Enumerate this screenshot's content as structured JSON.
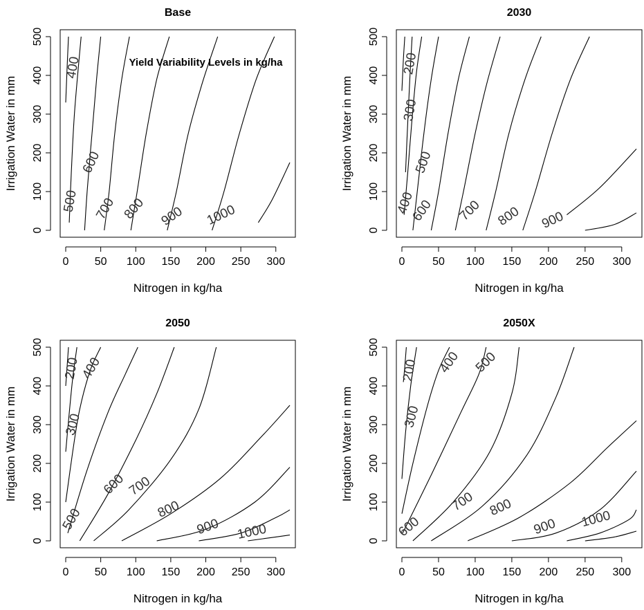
{
  "chart_data": [
    {
      "type": "contour",
      "title": "Base",
      "xlabel": "Nitrogen in kg/ha",
      "ylabel": "Irrigation Water in mm",
      "xlim": [
        0,
        320
      ],
      "ylim": [
        0,
        500
      ],
      "xticks": [
        "0",
        "50",
        "100",
        "150",
        "200",
        "250",
        "300"
      ],
      "yticks": [
        "0",
        "100",
        "200",
        "300",
        "400",
        "500"
      ],
      "annotation": "Yield Variability Levels in kg/ha",
      "contours": [
        {
          "level": "400",
          "points": [
            [
              0,
              330
            ],
            [
              2,
              420
            ],
            [
              4,
              500
            ]
          ]
        },
        {
          "level": "500",
          "points": [
            [
              5,
              20
            ],
            [
              8,
              150
            ],
            [
              12,
              290
            ],
            [
              18,
              420
            ],
            [
              22,
              500
            ]
          ]
        },
        {
          "level": "600",
          "points": [
            [
              27,
              0
            ],
            [
              31,
              110
            ],
            [
              38,
              260
            ],
            [
              44,
              390
            ],
            [
              50,
              500
            ]
          ]
        },
        {
          "level": "700",
          "points": [
            [
              55,
              0
            ],
            [
              62,
              100
            ],
            [
              70,
              250
            ],
            [
              80,
              390
            ],
            [
              91,
              500
            ]
          ]
        },
        {
          "level": "800",
          "points": [
            [
              93,
              0
            ],
            [
              102,
              100
            ],
            [
              115,
              250
            ],
            [
              130,
              390
            ],
            [
              148,
              500
            ]
          ]
        },
        {
          "level": "900",
          "points": [
            [
              145,
              0
            ],
            [
              158,
              100
            ],
            [
              175,
              250
            ],
            [
              195,
              380
            ],
            [
              217,
              500
            ]
          ]
        },
        {
          "level": "1000",
          "points": [
            [
              209,
              0
            ],
            [
              226,
              100
            ],
            [
              248,
              250
            ],
            [
              272,
              390
            ],
            [
              298,
              500
            ]
          ]
        },
        {
          "level": "",
          "points": [
            [
              275,
              20
            ],
            [
              295,
              80
            ],
            [
              320,
              175
            ]
          ]
        }
      ],
      "contour_labels": [
        {
          "text": "400",
          "x": 11,
          "y": 420,
          "angle": -80
        },
        {
          "text": "500",
          "x": 7,
          "y": 75,
          "angle": -80
        },
        {
          "text": "600",
          "x": 37,
          "y": 175,
          "angle": -65
        },
        {
          "text": "700",
          "x": 57,
          "y": 55,
          "angle": -60
        },
        {
          "text": "800",
          "x": 98,
          "y": 55,
          "angle": -50
        },
        {
          "text": "900",
          "x": 152,
          "y": 35,
          "angle": -35
        },
        {
          "text": "1000",
          "x": 222,
          "y": 38,
          "angle": -25
        }
      ]
    },
    {
      "type": "contour",
      "title": "2030",
      "xlabel": "Nitrogen in kg/ha",
      "ylabel": "Irrigation Water in mm",
      "xlim": [
        0,
        320
      ],
      "ylim": [
        0,
        500
      ],
      "xticks": [
        "0",
        "50",
        "100",
        "150",
        "200",
        "250",
        "300"
      ],
      "yticks": [
        "0",
        "100",
        "200",
        "300",
        "400",
        "500"
      ],
      "contours": [
        {
          "level": "200",
          "points": [
            [
              0,
              360
            ],
            [
              2,
              440
            ],
            [
              4,
              500
            ]
          ]
        },
        {
          "level": "300",
          "points": [
            [
              5,
              150
            ],
            [
              8,
              280
            ],
            [
              11,
              400
            ],
            [
              14,
              500
            ]
          ]
        },
        {
          "level": "400",
          "points": [
            [
              3,
              40
            ],
            [
              8,
              150
            ],
            [
              14,
              290
            ],
            [
              20,
              410
            ],
            [
              27,
              500
            ]
          ]
        },
        {
          "level": "500",
          "points": [
            [
              15,
              0
            ],
            [
              21,
              100
            ],
            [
              30,
              250
            ],
            [
              40,
              390
            ],
            [
              50,
              500
            ]
          ]
        },
        {
          "level": "600",
          "points": [
            [
              40,
              0
            ],
            [
              50,
              100
            ],
            [
              63,
              250
            ],
            [
              77,
              390
            ],
            [
              92,
              500
            ]
          ]
        },
        {
          "level": "700",
          "points": [
            [
              73,
              0
            ],
            [
              84,
              100
            ],
            [
              100,
              250
            ],
            [
              116,
              380
            ],
            [
              134,
              500
            ]
          ]
        },
        {
          "level": "800",
          "points": [
            [
              115,
              0
            ],
            [
              128,
              100
            ],
            [
              146,
              250
            ],
            [
              168,
              390
            ],
            [
              190,
              500
            ]
          ]
        },
        {
          "level": "900",
          "points": [
            [
              165,
              0
            ],
            [
              182,
              100
            ],
            [
              205,
              250
            ],
            [
              230,
              390
            ],
            [
              256,
              500
            ]
          ]
        },
        {
          "level": "",
          "points": [
            [
              225,
              40
            ],
            [
              270,
              110
            ],
            [
              320,
              210
            ]
          ]
        },
        {
          "level": "",
          "points": [
            [
              250,
              0
            ],
            [
              290,
              15
            ],
            [
              320,
              45
            ]
          ]
        }
      ],
      "contour_labels": [
        {
          "text": "200",
          "x": 12,
          "y": 430,
          "angle": -80
        },
        {
          "text": "300",
          "x": 12,
          "y": 310,
          "angle": -80
        },
        {
          "text": "500",
          "x": 30,
          "y": 175,
          "angle": -70
        },
        {
          "text": "400",
          "x": 5,
          "y": 70,
          "angle": -70
        },
        {
          "text": "600",
          "x": 28,
          "y": 50,
          "angle": -55
        },
        {
          "text": "700",
          "x": 93,
          "y": 50,
          "angle": -45
        },
        {
          "text": "800",
          "x": 146,
          "y": 35,
          "angle": -35
        },
        {
          "text": "900",
          "x": 206,
          "y": 25,
          "angle": -25
        }
      ]
    },
    {
      "type": "contour",
      "title": "2050",
      "xlabel": "Nitrogen in kg/ha",
      "ylabel": "Irrigation Water in mm",
      "xlim": [
        0,
        320
      ],
      "ylim": [
        0,
        500
      ],
      "xticks": [
        "0",
        "50",
        "100",
        "150",
        "200",
        "250",
        "300"
      ],
      "yticks": [
        "0",
        "100",
        "200",
        "300",
        "400",
        "500"
      ],
      "contours": [
        {
          "level": "200",
          "points": [
            [
              0,
              400
            ],
            [
              2,
              450
            ],
            [
              4,
              500
            ]
          ]
        },
        {
          "level": "300",
          "points": [
            [
              0,
              230
            ],
            [
              5,
              330
            ],
            [
              10,
              420
            ],
            [
              16,
              500
            ]
          ]
        },
        {
          "level": "400",
          "points": [
            [
              0,
              100
            ],
            [
              10,
              230
            ],
            [
              20,
              340
            ],
            [
              35,
              440
            ],
            [
              50,
              500
            ]
          ]
        },
        {
          "level": "500",
          "points": [
            [
              3,
              20
            ],
            [
              30,
              180
            ],
            [
              60,
              330
            ],
            [
              85,
              430
            ],
            [
              103,
              500
            ]
          ]
        },
        {
          "level": "600",
          "points": [
            [
              20,
              0
            ],
            [
              60,
              120
            ],
            [
              100,
              260
            ],
            [
              130,
              380
            ],
            [
              155,
              500
            ]
          ]
        },
        {
          "level": "700",
          "points": [
            [
              40,
              0
            ],
            [
              90,
              80
            ],
            [
              150,
              210
            ],
            [
              190,
              340
            ],
            [
              215,
              500
            ]
          ]
        },
        {
          "level": "800",
          "points": [
            [
              80,
              0
            ],
            [
              150,
              70
            ],
            [
              220,
              160
            ],
            [
              280,
              270
            ],
            [
              320,
              350
            ]
          ]
        },
        {
          "level": "900",
          "points": [
            [
              130,
              0
            ],
            [
              200,
              30
            ],
            [
              270,
              100
            ],
            [
              320,
              190
            ]
          ]
        },
        {
          "level": "1000",
          "points": [
            [
              190,
              0
            ],
            [
              250,
              20
            ],
            [
              300,
              60
            ],
            [
              320,
              80
            ]
          ]
        },
        {
          "level": "",
          "points": [
            [
              260,
              0
            ],
            [
              300,
              10
            ],
            [
              320,
              15
            ]
          ]
        }
      ],
      "contour_labels": [
        {
          "text": "200",
          "x": 9,
          "y": 445,
          "angle": -80
        },
        {
          "text": "300",
          "x": 11,
          "y": 300,
          "angle": -75
        },
        {
          "text": "400",
          "x": 37,
          "y": 445,
          "angle": -60
        },
        {
          "text": "500",
          "x": 9,
          "y": 55,
          "angle": -60
        },
        {
          "text": "600",
          "x": 69,
          "y": 145,
          "angle": -45
        },
        {
          "text": "700",
          "x": 106,
          "y": 140,
          "angle": -35
        },
        {
          "text": "800",
          "x": 147,
          "y": 80,
          "angle": -25
        },
        {
          "text": "900",
          "x": 203,
          "y": 35,
          "angle": -20
        },
        {
          "text": "1000",
          "x": 266,
          "y": 22,
          "angle": -12
        }
      ]
    },
    {
      "type": "contour",
      "title": "2050X",
      "xlabel": "Nitrogen in kg/ha",
      "ylabel": "Irrigation Water in mm",
      "xlim": [
        0,
        320
      ],
      "ylim": [
        0,
        500
      ],
      "xticks": [
        "0",
        "50",
        "100",
        "150",
        "200",
        "250",
        "300"
      ],
      "yticks": [
        "0",
        "100",
        "200",
        "300",
        "400",
        "500"
      ],
      "contours": [
        {
          "level": "200",
          "points": [
            [
              2,
              410
            ],
            [
              4,
              450
            ],
            [
              6,
              500
            ]
          ]
        },
        {
          "level": "300",
          "points": [
            [
              0,
              160
            ],
            [
              5,
              280
            ],
            [
              12,
              400
            ],
            [
              20,
              500
            ]
          ]
        },
        {
          "level": "400",
          "points": [
            [
              0,
              70
            ],
            [
              15,
              200
            ],
            [
              35,
              350
            ],
            [
              50,
              440
            ],
            [
              65,
              500
            ]
          ]
        },
        {
          "level": "500",
          "points": [
            [
              1,
              20
            ],
            [
              40,
              170
            ],
            [
              80,
              330
            ],
            [
              105,
              430
            ],
            [
              115,
              500
            ]
          ]
        },
        {
          "level": "600",
          "points": [
            [
              15,
              0
            ],
            [
              70,
              100
            ],
            [
              120,
              230
            ],
            [
              150,
              380
            ],
            [
              160,
              500
            ]
          ]
        },
        {
          "level": "700",
          "points": [
            [
              40,
              0
            ],
            [
              110,
              90
            ],
            [
              170,
              220
            ],
            [
              210,
              370
            ],
            [
              235,
              500
            ]
          ]
        },
        {
          "level": "800",
          "points": [
            [
              90,
              0
            ],
            [
              160,
              60
            ],
            [
              230,
              150
            ],
            [
              280,
              240
            ],
            [
              320,
              310
            ]
          ]
        },
        {
          "level": "900",
          "points": [
            [
              150,
              0
            ],
            [
              210,
              20
            ],
            [
              270,
              80
            ],
            [
              320,
              180
            ]
          ]
        },
        {
          "level": "1000",
          "points": [
            [
              225,
              0
            ],
            [
              270,
              20
            ],
            [
              310,
              55
            ],
            [
              320,
              80
            ]
          ]
        },
        {
          "level": "",
          "points": [
            [
              250,
              0
            ],
            [
              290,
              10
            ],
            [
              320,
              25
            ]
          ]
        }
      ],
      "contour_labels": [
        {
          "text": "200",
          "x": 11,
          "y": 440,
          "angle": -80
        },
        {
          "text": "300",
          "x": 14,
          "y": 320,
          "angle": -75
        },
        {
          "text": "400",
          "x": 65,
          "y": 460,
          "angle": -55
        },
        {
          "text": "500",
          "x": 115,
          "y": 460,
          "angle": -45
        },
        {
          "text": "600",
          "x": 10,
          "y": 35,
          "angle": -40
        },
        {
          "text": "700",
          "x": 83,
          "y": 100,
          "angle": -35
        },
        {
          "text": "800",
          "x": 135,
          "y": 85,
          "angle": -25
        },
        {
          "text": "900",
          "x": 195,
          "y": 35,
          "angle": -20
        },
        {
          "text": "1000",
          "x": 265,
          "y": 55,
          "angle": -15
        }
      ]
    }
  ]
}
